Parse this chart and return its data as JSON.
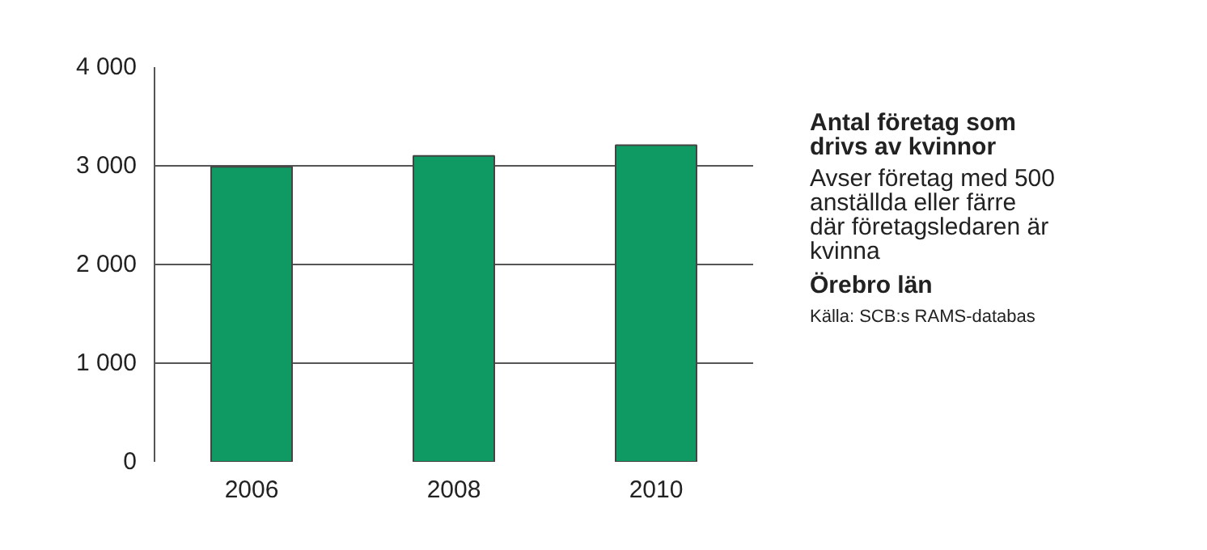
{
  "chart_data": {
    "type": "bar",
    "title": "Antal företag som drivs av kvinnor",
    "subtitle": "Avser företag med 500 anställda eller färre där företagsledaren är kvinna",
    "annotations": [
      "Örebro län",
      "Källa: SCB:s RAMS-databas"
    ],
    "categories": [
      "2006",
      "2008",
      "2010"
    ],
    "values": [
      2990,
      3100,
      3210
    ],
    "color": "#109a63",
    "ylim": [
      0,
      4000
    ],
    "yticks": [
      {
        "value": 0,
        "label": "0"
      },
      {
        "value": 1000,
        "label": "1 000"
      },
      {
        "value": 2000,
        "label": "2 000"
      },
      {
        "value": 3000,
        "label": "3 000"
      },
      {
        "value": 4000,
        "label": "4 000"
      }
    ],
    "grid": "y"
  }
}
